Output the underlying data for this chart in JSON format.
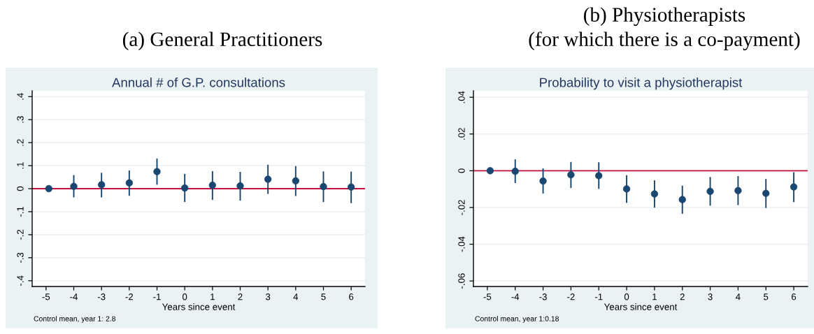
{
  "chart_data": [
    {
      "type": "scatter",
      "title": "(a) General Practitioners",
      "subtitle": "Annual # of G.P. consultations",
      "xlabel": "Years since event",
      "x": [
        -4.9,
        -4,
        -3,
        -2,
        -1,
        0,
        1,
        2,
        3,
        4,
        5,
        6
      ],
      "values": [
        0.0,
        0.01,
        0.017,
        0.025,
        0.074,
        0.003,
        0.015,
        0.012,
        0.041,
        0.034,
        0.009,
        0.007
      ],
      "errors": [
        null,
        [
          -0.038,
          0.059
        ],
        [
          -0.038,
          0.069
        ],
        [
          -0.031,
          0.079
        ],
        [
          0.017,
          0.131
        ],
        [
          -0.058,
          0.064
        ],
        [
          -0.049,
          0.076
        ],
        [
          -0.052,
          0.073
        ],
        [
          -0.023,
          0.104
        ],
        [
          -0.032,
          0.098
        ],
        [
          -0.058,
          0.075
        ],
        [
          -0.063,
          0.074
        ]
      ],
      "color": "#1a476f",
      "marker": "circle",
      "xlim": [
        -5.5,
        6.5
      ],
      "xticks": [
        -5,
        -4,
        -3,
        -2,
        -1,
        0,
        1,
        2,
        3,
        4,
        5,
        6
      ],
      "ylim": [
        -0.425,
        0.425
      ],
      "yticks": [
        {
          "value": -0.4,
          "label": "-.4"
        },
        {
          "value": -0.3,
          "label": "-.3"
        },
        {
          "value": -0.2,
          "label": "-.2"
        },
        {
          "value": -0.1,
          "label": "-.1"
        },
        0,
        {
          "value": 0.1,
          "label": ".1"
        },
        {
          "value": 0.2,
          "label": ".2"
        },
        {
          "value": 0.3,
          "label": ".3"
        },
        {
          "value": 0.4,
          "label": ".4"
        }
      ],
      "ref_lines": [
        {
          "axis": "y",
          "value": 0,
          "color": "#c8103e"
        }
      ],
      "grid": "y",
      "annotations": [
        "Control mean, year 1: 2.8"
      ]
    },
    {
      "type": "scatter",
      "title": "(b) Physiotherapists\n(for which there is a co-payment)",
      "subtitle": "Probability to visit a physiotherapist",
      "xlabel": "Years since event",
      "x": [
        -4.9,
        -4,
        -3,
        -2,
        -1,
        0,
        1,
        2,
        3,
        4,
        5,
        6
      ],
      "values": [
        0.0,
        -0.0003,
        -0.0056,
        -0.0022,
        -0.0027,
        -0.0099,
        -0.0126,
        -0.0157,
        -0.0112,
        -0.0108,
        -0.0123,
        -0.0088
      ],
      "errors": [
        null,
        [
          -0.0067,
          0.0062
        ],
        [
          -0.0124,
          0.0013
        ],
        [
          -0.0094,
          0.0048
        ],
        [
          -0.0099,
          0.0046
        ],
        [
          -0.0175,
          -0.0024
        ],
        [
          -0.0201,
          -0.0052
        ],
        [
          -0.0234,
          -0.0081
        ],
        [
          -0.019,
          -0.0034
        ],
        [
          -0.0187,
          -0.0029
        ],
        [
          -0.0203,
          -0.0045
        ],
        [
          -0.0171,
          -0.0008
        ]
      ],
      "color": "#1a476f",
      "marker": "circle",
      "xlim": [
        -5.5,
        6.5
      ],
      "xticks": [
        -5,
        -4,
        -3,
        -2,
        -1,
        0,
        1,
        2,
        3,
        4,
        5,
        6
      ],
      "ylim": [
        -0.063,
        0.0435
      ],
      "yticks": [
        {
          "value": -0.06,
          "label": "-.06"
        },
        {
          "value": -0.04,
          "label": "-.04"
        },
        {
          "value": -0.02,
          "label": "-.02"
        },
        0,
        {
          "value": 0.02,
          "label": ".02"
        },
        {
          "value": 0.04,
          "label": ".04"
        }
      ],
      "ref_lines": [
        {
          "axis": "y",
          "value": 0,
          "color": "#c8103e"
        }
      ],
      "grid": "y",
      "annotations": [
        "Control mean, year 1:0.18"
      ]
    }
  ]
}
